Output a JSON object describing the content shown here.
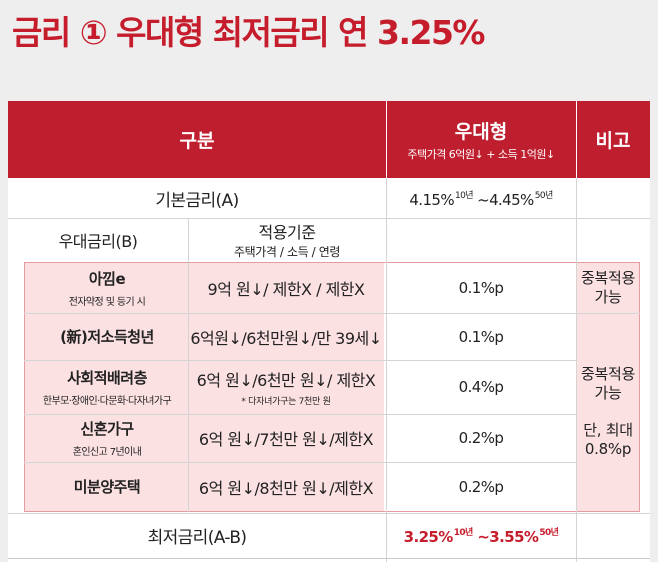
{
  "title": "금리 ① 우대형 최저금리 연 3.25%",
  "header": {
    "col_category": "구분",
    "col_type": "우대형",
    "col_type_sub": "주택가격 6억원↓ + 소득 1억원↓",
    "col_note": "비고"
  },
  "base_rate": {
    "label": "기본금리(A)",
    "rate_low": "4.15%",
    "rate_low_term": "10년",
    "sep": "~",
    "rate_high": "4.45%",
    "rate_high_term": "50년"
  },
  "preferential": {
    "label": "우대금리(B)",
    "criteria_title": "적용기준",
    "criteria_sub": "주택가격 / 소득 / 연령"
  },
  "programs": [
    {
      "name": "아낌e",
      "sub": "전자약정 및 등기 시",
      "criteria": "9억 원↓/ 제한X / 제한X",
      "note": "",
      "rate": "0.1%p"
    },
    {
      "name": "(新)저소득청년",
      "sub": "",
      "criteria": "6억원↓/6천만원↓/만 39세↓",
      "note": "",
      "rate": "0.1%p"
    },
    {
      "name": "사회적배려층",
      "sub": "한부모·장애인·다문화·다자녀가구",
      "criteria": "6억 원↓/6천만 원↓/ 제한X",
      "note": "* 다자녀가구는 7천만 원",
      "rate": "0.4%p"
    },
    {
      "name": "신혼가구",
      "sub": "혼인신고 7년이내",
      "criteria": "6억 원↓/7천만 원↓/제한X",
      "note": "",
      "rate": "0.2%p"
    },
    {
      "name": "미분양주택",
      "sub": "",
      "criteria": "6억 원↓/8천만 원↓/제한X",
      "note": "",
      "rate": "0.2%p"
    }
  ],
  "remarks": {
    "first": "중복적용\n가능",
    "second_a": "중복적용\n가능",
    "second_b": "단, 최대\n0.8%p"
  },
  "min_rate": {
    "label": "최저금리(A-B)",
    "rate_low": "3.25%",
    "rate_low_term": "10년",
    "sep": "~",
    "rate_high": "3.55%",
    "rate_high_term": "50년"
  },
  "colors": {
    "title": "#c61d2c",
    "header_bg": "#bf1e2e",
    "highlight_bg": "#fce1e3",
    "highlight_border": "#e79aa0",
    "background": "#eeeeee"
  }
}
